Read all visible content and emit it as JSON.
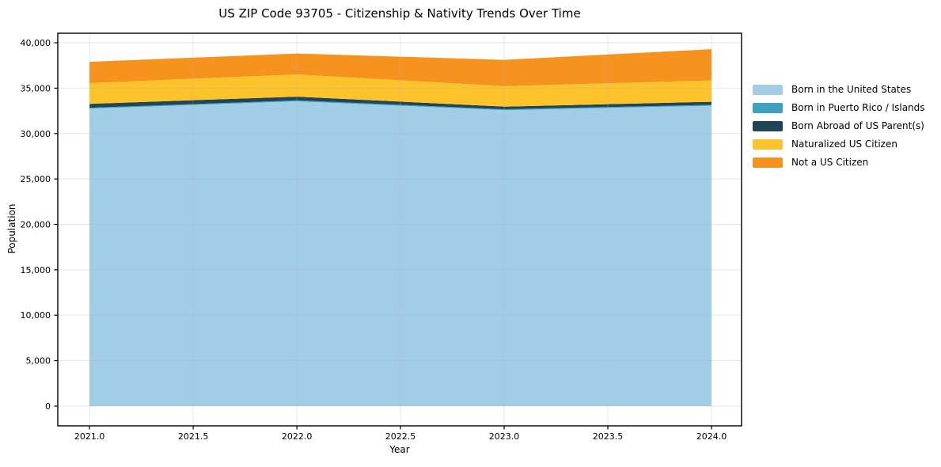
{
  "title": "US ZIP Code 93705 - Citizenship & Nativity Trends Over Time",
  "chart_data": {
    "type": "area",
    "stacked": true,
    "title": "US ZIP Code 93705 - Citizenship & Nativity Trends Over Time",
    "xlabel": "Year",
    "ylabel": "Population",
    "x": [
      2021,
      2022,
      2023,
      2024
    ],
    "series": [
      {
        "name": "Born in the United States",
        "color": "#A1CEE6",
        "values": [
          32750,
          33550,
          32580,
          33070
        ]
      },
      {
        "name": "Born in Puerto Rico / Islands",
        "color": "#3DA2C0",
        "values": [
          100,
          110,
          100,
          100
        ]
      },
      {
        "name": "Born Abroad of US Parent(s)",
        "color": "#1F4557",
        "values": [
          420,
          410,
          290,
          330
        ]
      },
      {
        "name": "Naturalized US Citizen",
        "color": "#FDC32B",
        "values": [
          2300,
          2450,
          2250,
          2350
        ]
      },
      {
        "name": "Not a US Citizen",
        "color": "#F6921E",
        "values": [
          2330,
          2300,
          2900,
          3450
        ]
      }
    ],
    "totals": [
      37900,
      38820,
      38120,
      39300
    ],
    "x_ticks": [
      2021.0,
      2021.5,
      2022.0,
      2022.5,
      2023.0,
      2023.5,
      2024.0
    ],
    "y_ticks": [
      0,
      5000,
      10000,
      15000,
      20000,
      25000,
      30000,
      35000,
      40000
    ],
    "xlim": [
      2020.847,
      2024.145
    ],
    "ylim": [
      -2183,
      41048
    ],
    "grid": true,
    "grid_color": "#b0b0b0",
    "grid_alpha": 0.3,
    "legend_position": "right",
    "axis_color": "#000000"
  }
}
